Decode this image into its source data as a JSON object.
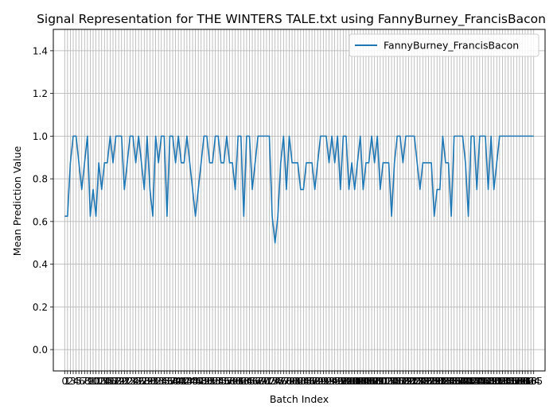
{
  "chart_data": {
    "type": "line",
    "title": "Signal Representation for THE WINTERS TALE.txt using FannyBurney_FrancisBacon",
    "xlabel": "Batch Index",
    "ylabel": "Mean Prediction Value",
    "xlim": [
      -4,
      169
    ],
    "ylim": [
      -0.1,
      1.5
    ],
    "yticks": [
      0.0,
      0.2,
      0.4,
      0.6,
      0.8,
      1.0,
      1.2,
      1.4
    ],
    "grid": true,
    "legend_position": "top-right",
    "line_color": "#1f77b4",
    "series": [
      {
        "name": "FannyBurney_FrancisBacon",
        "x": [
          0,
          1,
          2,
          3,
          4,
          5,
          6,
          7,
          8,
          9,
          10,
          11,
          12,
          13,
          14,
          15,
          16,
          17,
          18,
          19,
          20,
          21,
          22,
          23,
          24,
          25,
          26,
          27,
          28,
          29,
          30,
          31,
          32,
          33,
          34,
          35,
          36,
          37,
          38,
          39,
          40,
          41,
          42,
          43,
          44,
          45,
          46,
          47,
          48,
          49,
          50,
          51,
          52,
          53,
          54,
          55,
          56,
          57,
          58,
          59,
          60,
          61,
          62,
          63,
          64,
          65,
          66,
          67,
          68,
          69,
          70,
          71,
          72,
          73,
          74,
          75,
          76,
          77,
          78,
          79,
          80,
          81,
          82,
          83,
          84,
          85,
          86,
          87,
          88,
          89,
          90,
          91,
          92,
          93,
          94,
          95,
          96,
          97,
          98,
          99,
          100,
          101,
          102,
          103,
          104,
          105,
          106,
          107,
          108,
          109,
          110,
          111,
          112,
          113,
          114,
          115,
          116,
          117,
          118,
          119,
          120,
          121,
          122,
          123,
          124,
          125,
          126,
          127,
          128,
          129,
          130,
          131,
          132,
          133,
          134,
          135,
          136,
          137,
          138,
          139,
          140,
          141,
          142,
          143,
          144,
          145,
          146,
          147,
          148,
          149,
          150,
          151,
          152,
          153,
          154,
          155,
          156,
          157,
          158,
          159,
          160,
          161,
          162,
          163,
          164,
          165
        ],
        "values": [
          0.625,
          0.625,
          0.875,
          1.0,
          1.0,
          0.875,
          0.75,
          0.875,
          1.0,
          0.625,
          0.75,
          0.625,
          0.875,
          0.75,
          0.875,
          0.875,
          1.0,
          0.875,
          1.0,
          1.0,
          1.0,
          0.75,
          0.875,
          1.0,
          1.0,
          0.875,
          1.0,
          0.875,
          0.75,
          1.0,
          0.75,
          0.625,
          1.0,
          0.875,
          1.0,
          1.0,
          0.625,
          1.0,
          1.0,
          0.875,
          1.0,
          0.875,
          0.875,
          1.0,
          0.875,
          0.75,
          0.625,
          0.75,
          0.875,
          1.0,
          1.0,
          0.875,
          0.875,
          1.0,
          1.0,
          0.875,
          0.875,
          1.0,
          0.875,
          0.875,
          0.75,
          1.0,
          1.0,
          0.625,
          1.0,
          1.0,
          0.75,
          0.875,
          1.0,
          1.0,
          1.0,
          1.0,
          1.0,
          0.625,
          0.5,
          0.625,
          0.875,
          1.0,
          0.75,
          1.0,
          0.875,
          0.875,
          0.875,
          0.75,
          0.75,
          0.875,
          0.875,
          0.875,
          0.75,
          0.875,
          1.0,
          1.0,
          1.0,
          0.875,
          1.0,
          0.875,
          1.0,
          0.75,
          1.0,
          1.0,
          0.75,
          0.875,
          0.75,
          0.875,
          1.0,
          0.75,
          0.875,
          0.875,
          1.0,
          0.875,
          1.0,
          0.75,
          0.875,
          0.875,
          0.875,
          0.625,
          0.875,
          1.0,
          1.0,
          0.875,
          1.0,
          1.0,
          1.0,
          1.0,
          0.875,
          0.75,
          0.875,
          0.875,
          0.875,
          0.875,
          0.625,
          0.75,
          0.75,
          1.0,
          0.875,
          0.875,
          0.625,
          1.0,
          1.0,
          1.0,
          1.0,
          0.875,
          0.625,
          1.0,
          1.0,
          0.75,
          1.0,
          1.0,
          1.0,
          0.75,
          1.0,
          0.75,
          0.875,
          1.0,
          1.0,
          1.0,
          1.0,
          1.0,
          1.0,
          1.0,
          1.0,
          1.0,
          1.0,
          1.0,
          1.0,
          1.0
        ]
      }
    ]
  }
}
